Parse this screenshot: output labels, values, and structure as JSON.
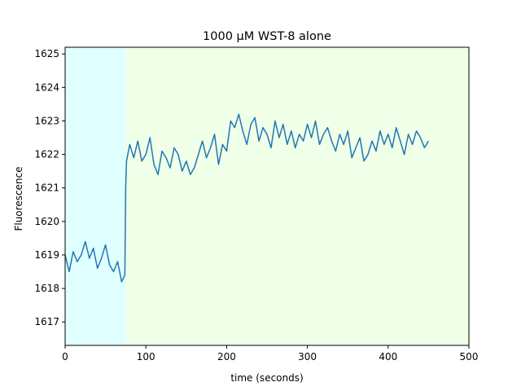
{
  "chart_data": {
    "type": "line",
    "title": "1000 µM WST-8 alone",
    "xlabel": "time (seconds)",
    "ylabel": "Fluorescence",
    "xlim": [
      0,
      500
    ],
    "ylim": [
      1616.3,
      1625.2
    ],
    "xticks": [
      0,
      100,
      200,
      300,
      400,
      500
    ],
    "yticks": [
      1617,
      1618,
      1619,
      1620,
      1621,
      1622,
      1623,
      1624,
      1625
    ],
    "grid": false,
    "legend": "none",
    "colors": {
      "line": "#1f77b4",
      "baseline_region": "#e0ffff",
      "treatment_region": "#f0ffe8"
    },
    "regions": [
      {
        "x_start": 0,
        "x_end": 75,
        "color": "#e0ffff"
      },
      {
        "x_start": 75,
        "x_end": 500,
        "color": "#f0ffe8"
      }
    ],
    "series": [
      {
        "x": [
          0,
          5,
          10,
          15,
          20,
          25,
          30,
          35,
          40,
          45,
          50,
          55,
          60,
          65,
          70,
          74,
          75,
          76,
          80,
          85,
          90,
          95,
          100,
          105,
          110,
          115,
          120,
          125,
          130,
          135,
          140,
          145,
          150,
          155,
          160,
          165,
          170,
          175,
          180,
          185,
          190,
          195,
          200,
          205,
          210,
          215,
          220,
          225,
          230,
          235,
          240,
          245,
          250,
          255,
          260,
          265,
          270,
          275,
          280,
          285,
          290,
          295,
          300,
          305,
          310,
          315,
          320,
          325,
          330,
          335,
          340,
          345,
          350,
          355,
          360,
          365,
          370,
          375,
          380,
          385,
          390,
          395,
          400,
          405,
          410,
          415,
          420,
          425,
          430,
          435,
          440,
          445,
          450
        ],
        "y": [
          1619.0,
          1618.5,
          1619.1,
          1618.8,
          1619.0,
          1619.4,
          1618.9,
          1619.2,
          1618.6,
          1618.9,
          1619.3,
          1618.7,
          1618.5,
          1618.8,
          1618.2,
          1618.4,
          1621.0,
          1621.8,
          1622.3,
          1621.9,
          1622.4,
          1621.8,
          1622.0,
          1622.5,
          1621.7,
          1621.4,
          1622.1,
          1621.9,
          1621.6,
          1622.2,
          1622.0,
          1621.5,
          1621.8,
          1621.4,
          1621.6,
          1622.0,
          1622.4,
          1621.9,
          1622.2,
          1622.6,
          1621.7,
          1622.3,
          1622.1,
          1623.0,
          1622.8,
          1623.2,
          1622.7,
          1622.3,
          1622.9,
          1623.1,
          1622.4,
          1622.8,
          1622.6,
          1622.2,
          1623.0,
          1622.5,
          1622.9,
          1622.3,
          1622.7,
          1622.2,
          1622.6,
          1622.4,
          1622.9,
          1622.5,
          1623.0,
          1622.3,
          1622.6,
          1622.8,
          1622.4,
          1622.1,
          1622.6,
          1622.3,
          1622.7,
          1621.9,
          1622.2,
          1622.5,
          1621.8,
          1622.0,
          1622.4,
          1622.1,
          1622.7,
          1622.3,
          1622.6,
          1622.2,
          1622.8,
          1622.4,
          1622.0,
          1622.6,
          1622.3,
          1622.7,
          1622.5,
          1622.2,
          1622.4
        ]
      }
    ]
  }
}
